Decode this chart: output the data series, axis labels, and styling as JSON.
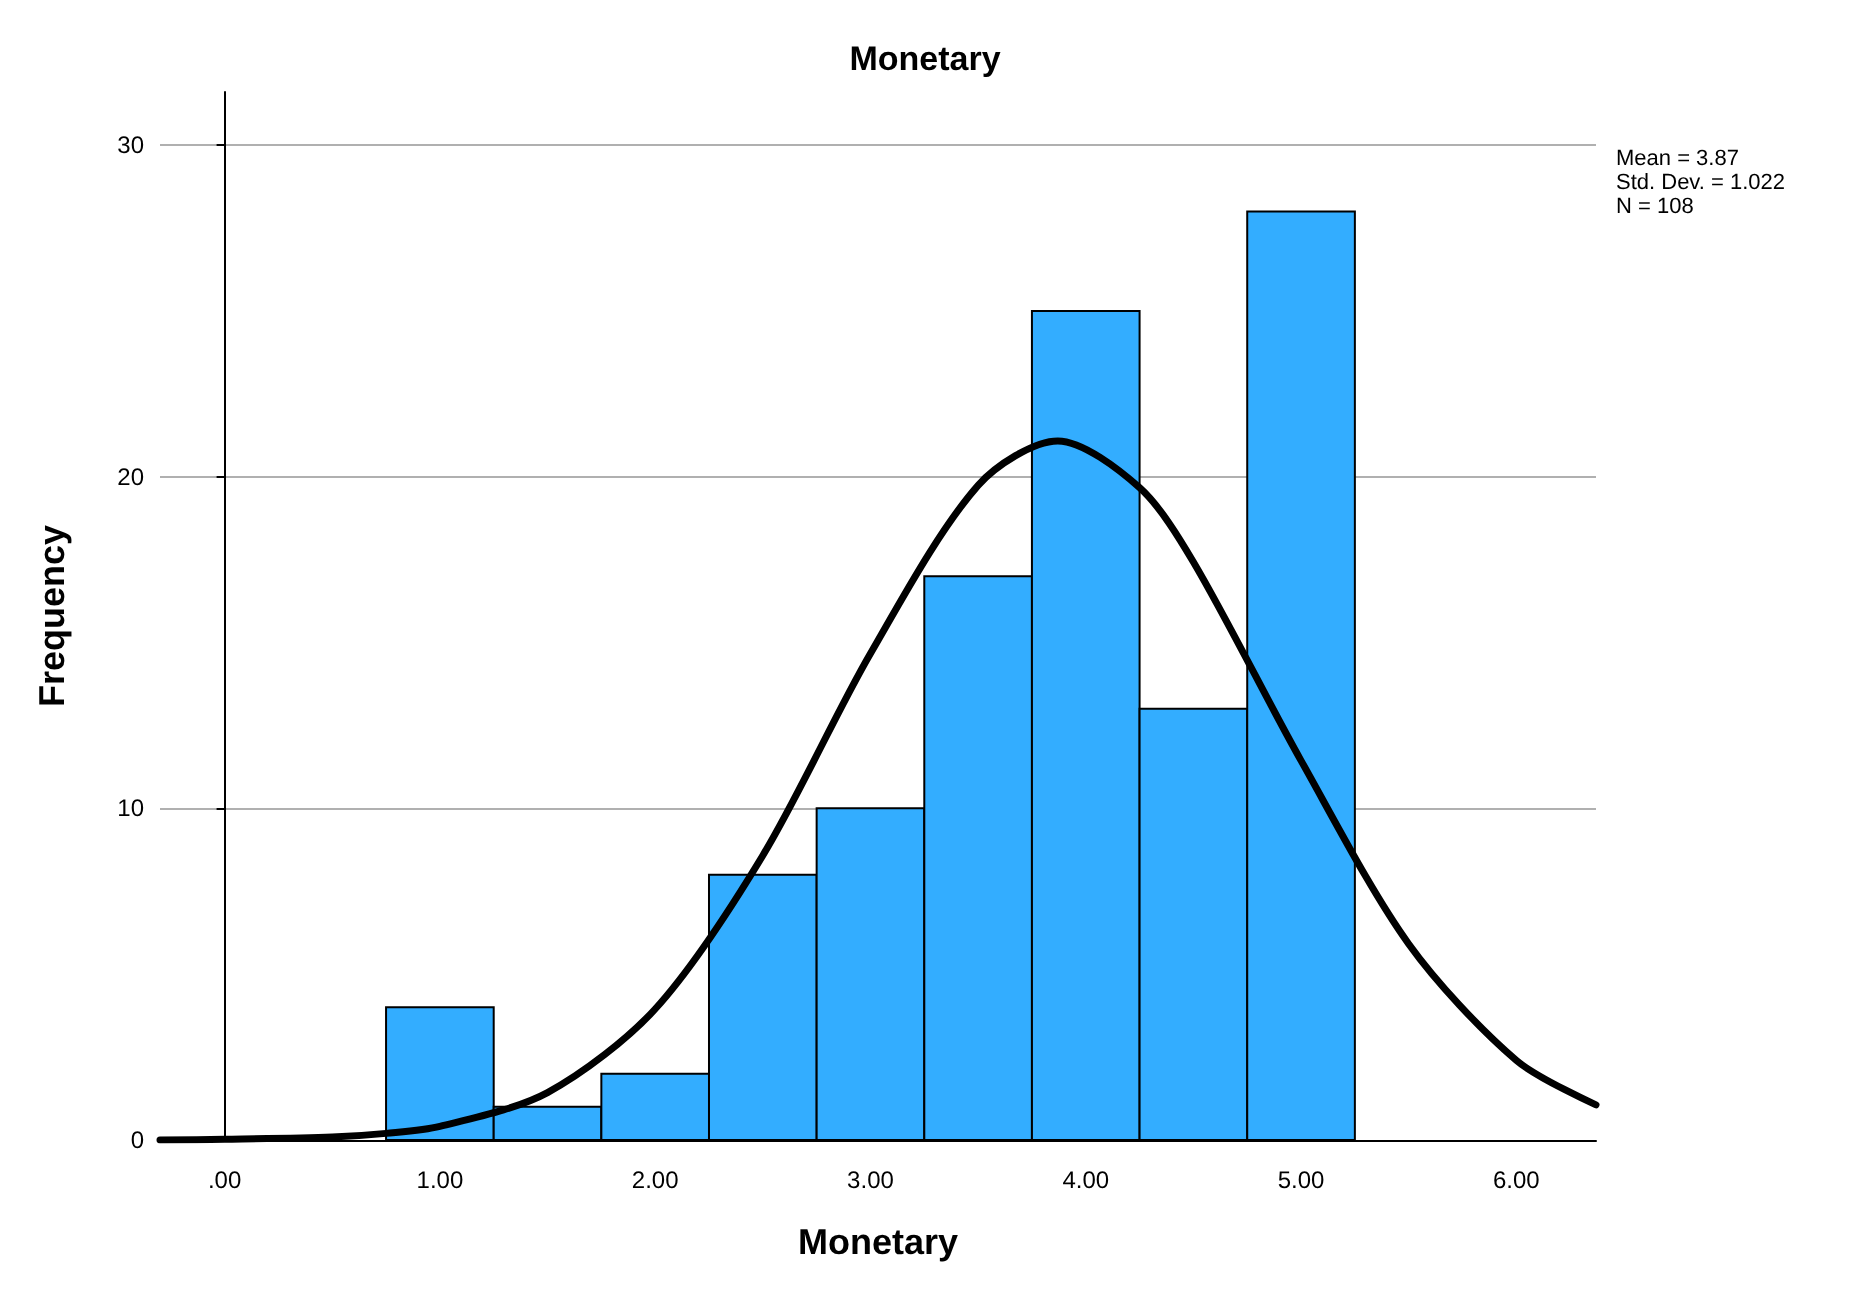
{
  "chart_data": {
    "type": "histogram",
    "title": "Monetary",
    "xlabel": "Monetary",
    "ylabel": "Frequency",
    "bins": [
      0.75,
      1.25,
      1.75,
      2.25,
      2.75,
      3.25,
      3.75,
      4.25,
      4.75,
      5.25
    ],
    "values": [
      4,
      1,
      2,
      8,
      10,
      17,
      25,
      13,
      28
    ],
    "color": "#33adff",
    "series": [
      {
        "type": "line",
        "color": "#000000",
        "x": [
          -0.3,
          0,
          0.5,
          0.75,
          1,
          1.5,
          2,
          2.5,
          3,
          3.5,
          3.87,
          4.25,
          4.5,
          5,
          5.5,
          6,
          6.37
        ],
        "values": [
          0,
          0.02,
          0.09,
          0.2,
          0.41,
          1.43,
          3.95,
          8.58,
          14.67,
          19.74,
          21.08,
          19.67,
          17.43,
          11.44,
          5.91,
          2.4,
          1.06
        ]
      }
    ],
    "marker": "none",
    "xlim": [
      -0.3,
      6.37
    ],
    "xticks": [
      {
        "value": 0,
        "label": ".00"
      },
      {
        "value": 1,
        "label": "1.00"
      },
      {
        "value": 2,
        "label": "2.00"
      },
      {
        "value": 3,
        "label": "3.00"
      },
      {
        "value": 4,
        "label": "4.00"
      },
      {
        "value": 5,
        "label": "5.00"
      },
      {
        "value": 6,
        "label": "6.00"
      }
    ],
    "ylim": [
      0,
      31.6
    ],
    "yticks": [
      0,
      10,
      20,
      30
    ],
    "grid": "y",
    "annotations": [
      "Mean = 3.87",
      "Std. Dev. = 1.022",
      "N = 108"
    ]
  }
}
